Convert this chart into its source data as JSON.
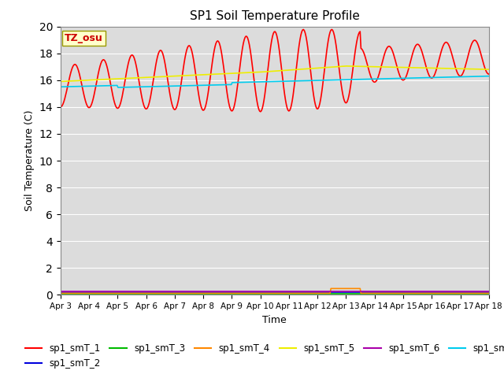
{
  "title": "SP1 Soil Temperature Profile",
  "xlabel": "Time",
  "ylabel": "Soil Temperature (C)",
  "annotation": "TZ_osu",
  "annotation_color": "#cc0000",
  "annotation_bg": "#ffffcc",
  "annotation_border": "#999900",
  "ylim": [
    0,
    20
  ],
  "yticks": [
    0,
    2,
    4,
    6,
    8,
    10,
    12,
    14,
    16,
    18,
    20
  ],
  "bg_color": "#dcdcdc",
  "series_colors": {
    "sp1_smT_1": "#ff0000",
    "sp1_smT_2": "#0000dd",
    "sp1_smT_3": "#00bb00",
    "sp1_smT_4": "#ff8800",
    "sp1_smT_5": "#eeee00",
    "sp1_smT_6": "#aa00aa",
    "sp1_smT_7": "#00ccee"
  },
  "xtick_labels": [
    "Apr 3",
    "Apr 4",
    "Apr 5",
    "Apr 6",
    "Apr 7",
    "Apr 8",
    "Apr 9",
    "Apr 10",
    "Apr 11",
    "Apr 12",
    "Apr 13",
    "Apr 14",
    "Apr 15",
    "Apr 16",
    "Apr 17",
    "Apr 18"
  ]
}
